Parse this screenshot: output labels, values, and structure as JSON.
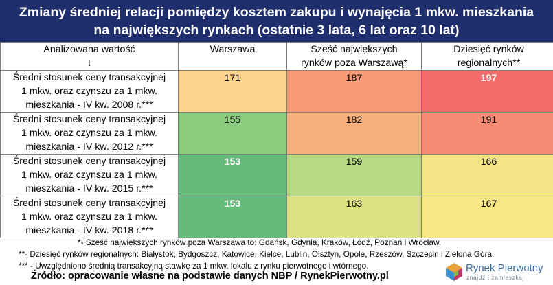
{
  "title": {
    "line1": "Zmiany średniej relacji pomiędzy kosztem zakupu i wynajęcia 1 mkw. mieszkania",
    "line2": "na największych rynkach (ostatnie 3 lata, 6 lat oraz 10 lat)"
  },
  "table": {
    "headers": [
      [
        "Analizowana wartość",
        "↓"
      ],
      [
        "Warszawa"
      ],
      [
        "Sześć największych",
        "rynków poza Warszawą*"
      ],
      [
        "Dziesięć rynków",
        "regionalnych**"
      ]
    ],
    "rows": [
      {
        "label": [
          "Średni stosunek ceny transakcyjnej",
          "1 mkw. oraz czynszu za 1 mkw.",
          "mieszkania - IV kw. 2008 r.***"
        ],
        "cells": [
          {
            "value": "171",
            "color": "#fbd38a",
            "bold": false
          },
          {
            "value": "187",
            "color": "#f79b77",
            "bold": false
          },
          {
            "value": "197",
            "color": "#f26c6c",
            "bold": true
          }
        ]
      },
      {
        "label": [
          "Średni stosunek ceny transakcyjnej",
          "1 mkw. oraz czynszu za 1 mkw.",
          "mieszkania - IV kw. 2012 r.***"
        ],
        "cells": [
          {
            "value": "155",
            "color": "#8bcb7d",
            "bold": false
          },
          {
            "value": "182",
            "color": "#f8af7e",
            "bold": false
          },
          {
            "value": "191",
            "color": "#f48c73",
            "bold": false
          }
        ]
      },
      {
        "label": [
          "Średni stosunek ceny transakcyjnej",
          "1 mkw. oraz czynszu za 1 mkw.",
          "mieszkania - IV kw. 2015 r.***"
        ],
        "cells": [
          {
            "value": "153",
            "color": "#65bb79",
            "bold": true
          },
          {
            "value": "159",
            "color": "#b6d982",
            "bold": false
          },
          {
            "value": "166",
            "color": "#f5e485",
            "bold": false
          }
        ]
      },
      {
        "label": [
          "Średni stosunek ceny transakcyjnej",
          "1 mkw. oraz czynszu za 1 mkw.",
          "mieszkania - IV kw. 2018 r.***"
        ],
        "cells": [
          {
            "value": "153",
            "color": "#65bb79",
            "bold": true
          },
          {
            "value": "163",
            "color": "#dde283",
            "bold": false
          },
          {
            "value": "167",
            "color": "#f9e784",
            "bold": false
          }
        ]
      }
    ]
  },
  "footnotes": [
    "*- Sześć największych rynków poza Warszawa to: Gdańsk, Gdynia, Kraków, Łódź, Poznań i Wrocław.",
    "**- Dziesięć rynków regionalnych: Białystok, Bydgoszcz, Katowice, Kielce, Lublin, Olsztyn, Opole, Rzeszów, Szczecin i Zielona Góra.",
    "*** - Uwzględniono średnią transakcyjną stawkę za 1 mkw. lokalu z rynku pierwotnego i wtórnego."
  ],
  "source": "Źródło: opracowanie własne na podstawie danych NBP / RynekPierwotny.pl",
  "logo": {
    "name": "Rynek Pierwotny",
    "tagline": "znajdź i zamieszkaj",
    "icon": "house-cube-icon"
  }
}
